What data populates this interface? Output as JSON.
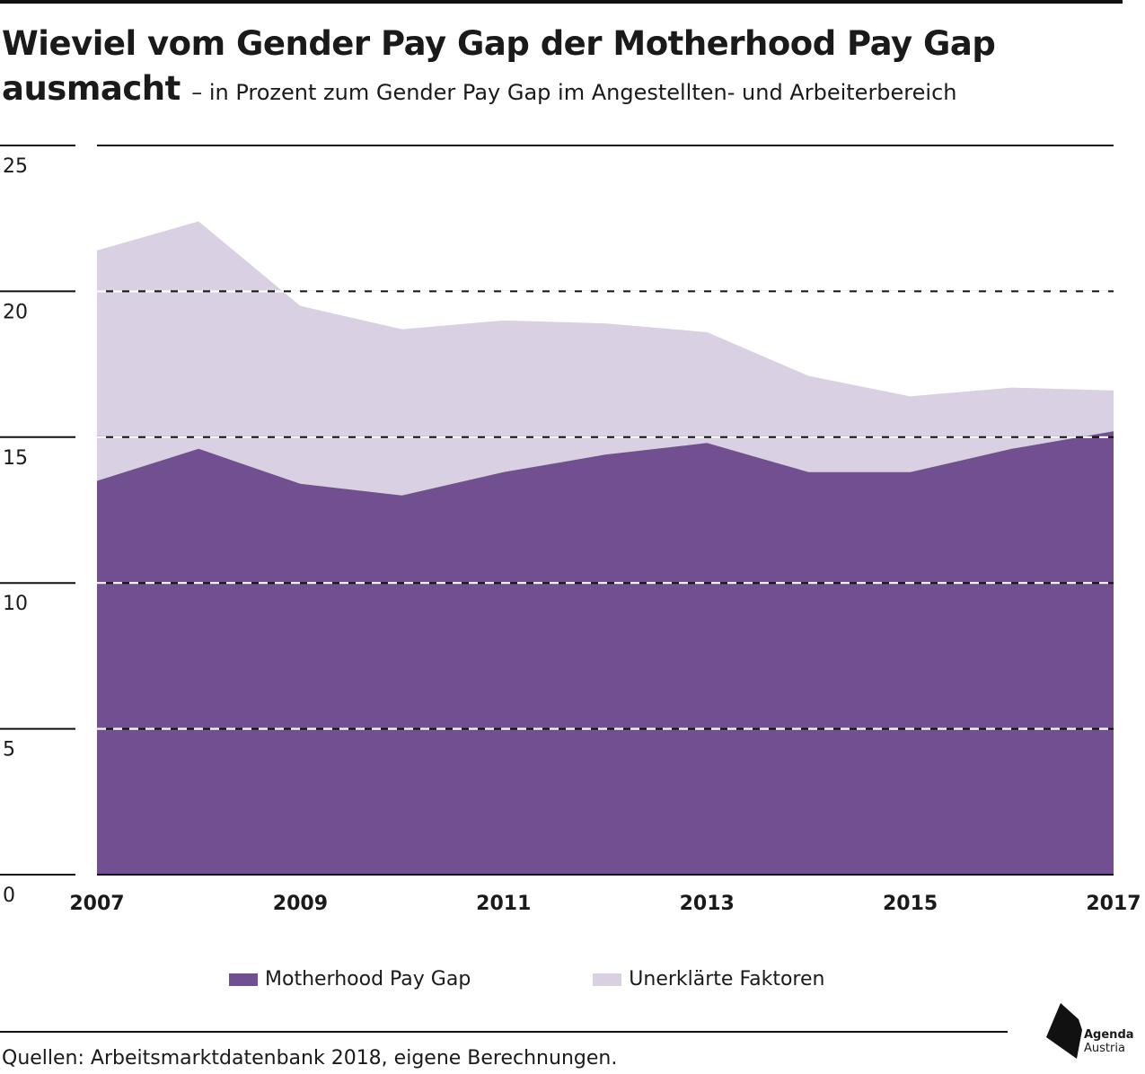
{
  "title": "Wieviel vom Gender Pay Gap der Motherhood Pay Gap ausmacht",
  "subtitle": "– in Prozent zum Gender Pay Gap im Angestellten- und Arbeiterbereich",
  "source": "Quellen: Arbeitsmarktdatenbank 2018, eigene Berechnungen.",
  "logo": {
    "line1": "Agenda",
    "line2": "Austria"
  },
  "legend": {
    "items": [
      {
        "label": "Motherhood Pay Gap",
        "color": "#714f91"
      },
      {
        "label": "Unerklärte Faktoren",
        "color": "#d9d0e4"
      }
    ]
  },
  "colors": {
    "motherhood": "#714f91",
    "unexplained": "#d9d0e4",
    "rule": "#111111"
  },
  "chart_data": {
    "type": "area",
    "stacked": false,
    "x": [
      2007,
      2008,
      2009,
      2010,
      2011,
      2012,
      2013,
      2014,
      2015,
      2016,
      2017
    ],
    "x_ticks": [
      "2007",
      "2009",
      "2011",
      "2013",
      "2015",
      "2017"
    ],
    "y_ticks": [
      "0",
      "5",
      "10",
      "15",
      "20",
      "25"
    ],
    "ylim": [
      0,
      25
    ],
    "grid": true,
    "legend_position": "bottom",
    "series": [
      {
        "name": "Unerklärte Faktoren",
        "values": [
          21.4,
          22.4,
          19.5,
          18.7,
          19.0,
          18.9,
          18.6,
          17.1,
          16.4,
          16.7,
          16.6
        ]
      },
      {
        "name": "Motherhood Pay Gap",
        "values": [
          13.5,
          14.6,
          13.4,
          13.0,
          13.8,
          14.4,
          14.8,
          13.8,
          13.8,
          14.6,
          15.2
        ]
      }
    ]
  }
}
